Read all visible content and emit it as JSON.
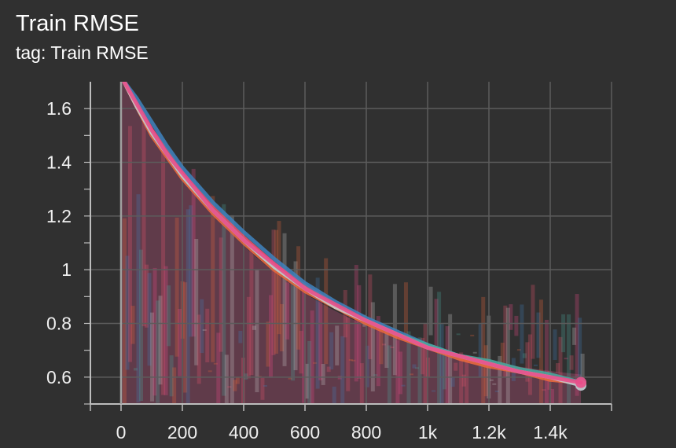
{
  "header": {
    "title": "Train RMSE",
    "subtitle": "tag: Train RMSE"
  },
  "chart_data": {
    "type": "line",
    "title": "Train RMSE",
    "subtitle": "tag: Train RMSE",
    "xlabel": "",
    "ylabel": "",
    "xlim": [
      -100,
      1600
    ],
    "ylim": [
      0.5,
      1.7
    ],
    "x_ticks": [
      0,
      200,
      400,
      600,
      800,
      1000,
      1200,
      1400
    ],
    "x_tick_labels": [
      "0",
      "200",
      "400",
      "600",
      "800",
      "1k",
      "1.2k",
      "1.4k"
    ],
    "y_ticks": [
      0.6,
      0.8,
      1.0,
      1.2,
      1.4,
      1.6
    ],
    "y_tick_labels": [
      "0.6",
      "0.8",
      "1",
      "1.2",
      "1.4",
      "1.6"
    ],
    "grid": true,
    "series": [
      {
        "color": "#e8576e",
        "x": [
          10,
          50,
          100,
          150,
          200,
          300,
          400,
          500,
          600,
          700,
          800,
          900,
          1000,
          1100,
          1200,
          1300,
          1400,
          1500
        ],
        "y": [
          1.7,
          1.62,
          1.52,
          1.44,
          1.36,
          1.23,
          1.12,
          1.02,
          0.94,
          0.87,
          0.81,
          0.76,
          0.71,
          0.68,
          0.65,
          0.62,
          0.6,
          0.58
        ]
      },
      {
        "color": "#3f7fb8",
        "x": [
          10,
          50,
          100,
          150,
          200,
          300,
          400,
          500,
          600,
          700,
          800,
          900,
          1000,
          1100,
          1200,
          1300,
          1400,
          1500
        ],
        "y": [
          1.7,
          1.64,
          1.55,
          1.46,
          1.38,
          1.25,
          1.14,
          1.04,
          0.95,
          0.88,
          0.82,
          0.77,
          0.72,
          0.68,
          0.65,
          0.62,
          0.6,
          0.57
        ]
      },
      {
        "color": "#e8683e",
        "x": [
          10,
          50,
          100,
          150,
          200,
          300,
          400,
          500,
          600,
          700,
          800,
          900,
          1000,
          1100,
          1200,
          1300,
          1400,
          1500
        ],
        "y": [
          1.7,
          1.61,
          1.5,
          1.42,
          1.34,
          1.21,
          1.1,
          1.0,
          0.92,
          0.86,
          0.8,
          0.75,
          0.71,
          0.67,
          0.64,
          0.62,
          0.59,
          0.58
        ]
      },
      {
        "color": "#4aa69c",
        "x": [
          10,
          50,
          100,
          150,
          200,
          300,
          400,
          500,
          600,
          700,
          800,
          900,
          1000,
          1100,
          1200,
          1300,
          1400,
          1500
        ],
        "y": [
          1.7,
          1.62,
          1.51,
          1.43,
          1.35,
          1.22,
          1.11,
          1.01,
          0.93,
          0.87,
          0.81,
          0.76,
          0.72,
          0.68,
          0.66,
          0.63,
          0.61,
          0.58
        ]
      },
      {
        "color": "#c9c9c9",
        "x": [
          10,
          50,
          100,
          150,
          200,
          300,
          400,
          500,
          600,
          700,
          800,
          900,
          1000,
          1100,
          1200,
          1300,
          1400,
          1500
        ],
        "y": [
          1.7,
          1.61,
          1.51,
          1.43,
          1.35,
          1.22,
          1.11,
          1.01,
          0.93,
          0.86,
          0.81,
          0.76,
          0.71,
          0.68,
          0.65,
          0.62,
          0.6,
          0.57
        ]
      },
      {
        "color": "#e84d8a",
        "x": [
          10,
          50,
          100,
          150,
          200,
          300,
          400,
          500,
          600,
          700,
          800,
          900,
          1000,
          1100,
          1200,
          1300,
          1400,
          1500
        ],
        "y": [
          1.7,
          1.62,
          1.52,
          1.43,
          1.36,
          1.22,
          1.11,
          1.02,
          0.93,
          0.87,
          0.81,
          0.76,
          0.71,
          0.68,
          0.65,
          0.62,
          0.6,
          0.58
        ]
      }
    ]
  },
  "colors": {
    "background": "#303030",
    "grid": "#5c5c5c",
    "axis": "#bdbdbd",
    "noise_fill": "#9b4a6a"
  }
}
